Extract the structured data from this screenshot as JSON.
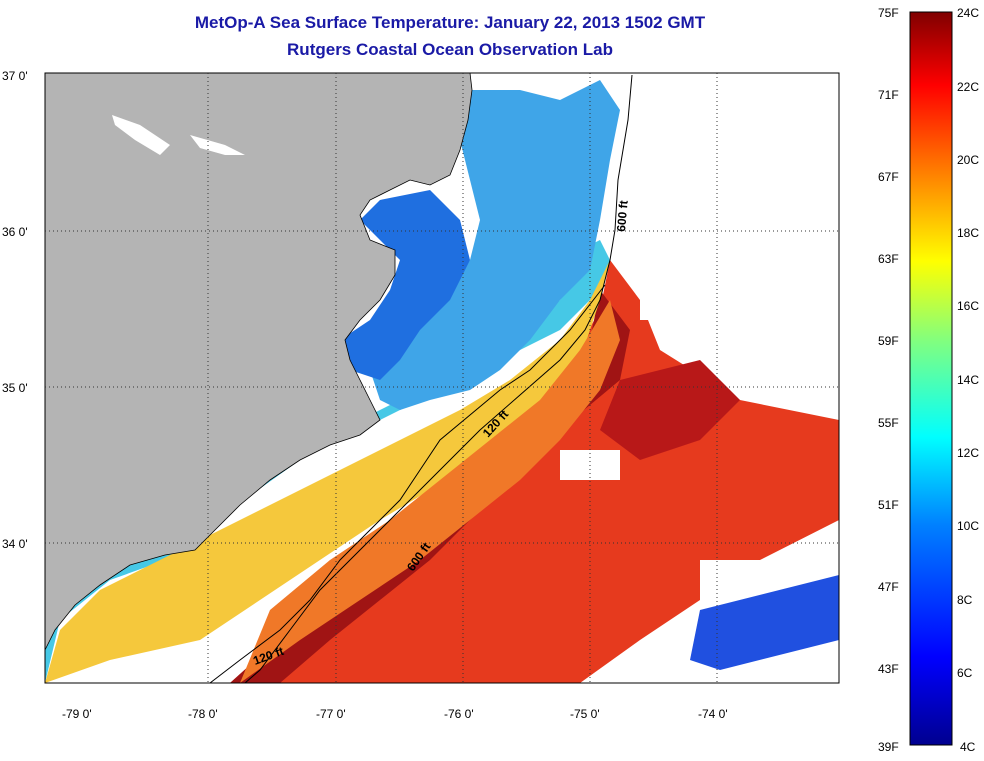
{
  "title": {
    "line1": "MetOp-A Sea Surface Temperature:  January 22, 2013 1502 GMT",
    "line2": "Rutgers Coastal Ocean Observation Lab"
  },
  "map": {
    "lat_labels": [
      "37 0'",
      "36 0'",
      "35 0'",
      "34 0'"
    ],
    "lon_labels": [
      "-79 0'",
      "-78 0'",
      "-77 0'",
      "-76 0'",
      "-75 0'",
      "-74 0'"
    ],
    "isobath_labels": [
      "600 ft",
      "120 ft",
      "600 ft",
      "120 ft"
    ],
    "colors": {
      "land": "#b4b4b4",
      "coast_water": "#1f6fe0",
      "shelf": "#46c8e6",
      "mid": "#f5d23c",
      "warm": "#e63a1e",
      "gulfstream": "#a01414",
      "cloud": "#ffffff"
    }
  },
  "colorbar": {
    "fahrenheit": [
      "75F",
      "71F",
      "67F",
      "63F",
      "59F",
      "55F",
      "51F",
      "47F",
      "43F",
      "39F"
    ],
    "celsius": [
      "24C",
      "22C",
      "20C",
      "18C",
      "16C",
      "14C",
      "12C",
      "10C",
      "8C",
      "6C",
      "4C"
    ],
    "gradient": [
      "#00008f",
      "#0000ff",
      "#0080ff",
      "#00ffff",
      "#80ff80",
      "#ffff00",
      "#ff8000",
      "#ff0000",
      "#800000"
    ]
  }
}
